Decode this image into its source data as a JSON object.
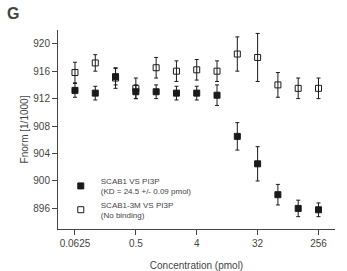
{
  "chart_data": {
    "type": "scatter",
    "title": "G",
    "xlabel": "Concentration (pmol)",
    "ylabel": "Fnorm [1/1000]",
    "log": "x",
    "xlim": [
      0.035,
      450
    ],
    "xticks": [
      0.0625,
      0.5,
      4,
      32,
      256
    ],
    "ylim": [
      893,
      922
    ],
    "yticks": [
      896,
      900,
      904,
      908,
      912,
      916,
      920
    ],
    "grid": false,
    "legend": "lower left",
    "series": [
      {
        "name": "SCAB1 VS PI3P\n(KD = 24.5 +/- 0.09 pmol)",
        "color": "#1a1a1a",
        "marker": "square",
        "x": [
          0.0625,
          0.125,
          0.25,
          0.5,
          1,
          2,
          4,
          8,
          16,
          32,
          64,
          128,
          256
        ],
        "values": [
          913.2,
          912.8,
          915.2,
          913.0,
          913.0,
          912.8,
          912.8,
          912.5,
          906.5,
          902.5,
          898.0,
          896.0,
          895.8
        ],
        "error": [
          1.0,
          1.0,
          1.2,
          1.0,
          1.0,
          1.0,
          1.0,
          1.5,
          2.0,
          2.5,
          1.5,
          1.2,
          1.0
        ]
      },
      {
        "name": "SCAB1-3M VS PI3P\n(No binding)",
        "color": "#1a1a1a",
        "marker": "square-open",
        "x": [
          0.0625,
          0.125,
          0.25,
          0.5,
          1,
          2,
          4,
          8,
          16,
          32,
          64,
          128,
          256
        ],
        "values": [
          915.8,
          917.2,
          915.0,
          913.5,
          916.5,
          916.0,
          916.2,
          916.0,
          918.5,
          918.0,
          914.0,
          913.5,
          913.5
        ],
        "error": [
          1.5,
          1.2,
          1.5,
          1.5,
          1.5,
          1.5,
          1.5,
          1.5,
          2.5,
          3.5,
          1.8,
          1.5,
          1.5
        ]
      }
    ]
  }
}
